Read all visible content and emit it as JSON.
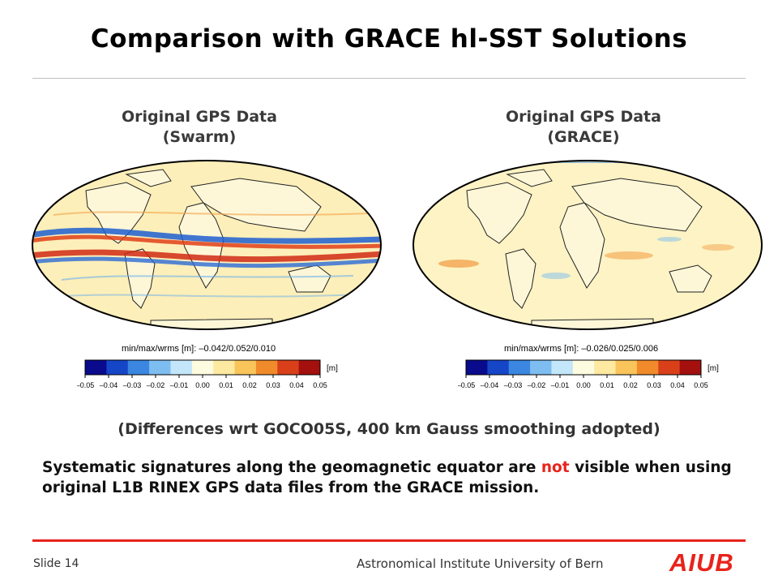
{
  "slide": {
    "title": "Comparison with GRACE hl-SST Solutions",
    "left_panel": {
      "label_line1": "Original GPS Data",
      "label_line2": "(Swarm)",
      "stats": "min/max/wrms [m]: –0.042/0.052/0.010"
    },
    "right_panel": {
      "label_line1": "Original GPS Data",
      "label_line2": "(GRACE)",
      "stats": "min/max/wrms [m]: –0.026/0.025/0.006"
    },
    "colorbar": {
      "unit": "[m]",
      "ticks": [
        "–0.05",
        "–0.04",
        "–0.03",
        "–0.02",
        "–0.01",
        "0.00",
        "0.01",
        "0.02",
        "0.03",
        "0.04",
        "0.05"
      ],
      "colors": [
        "#0a0a8c",
        "#1546c8",
        "#3a86e0",
        "#7dbdf0",
        "#c4e6fa",
        "#fdfbe0",
        "#fde9a0",
        "#f9c45a",
        "#f08a2a",
        "#d9401a",
        "#a3100e"
      ]
    },
    "caption": "(Differences wrt GOCO05S, 400 km Gauss smoothing adopted)",
    "body": {
      "part1": "Systematic signatures along the geomagnetic equator are ",
      "highlight": "not",
      "part2": " visible when using original L1B RINEX GPS data files from the GRACE mission."
    },
    "footer": {
      "slide_number": "Slide 14",
      "institute": "Astronomical Institute University of Bern",
      "logo": "AIUB"
    }
  }
}
